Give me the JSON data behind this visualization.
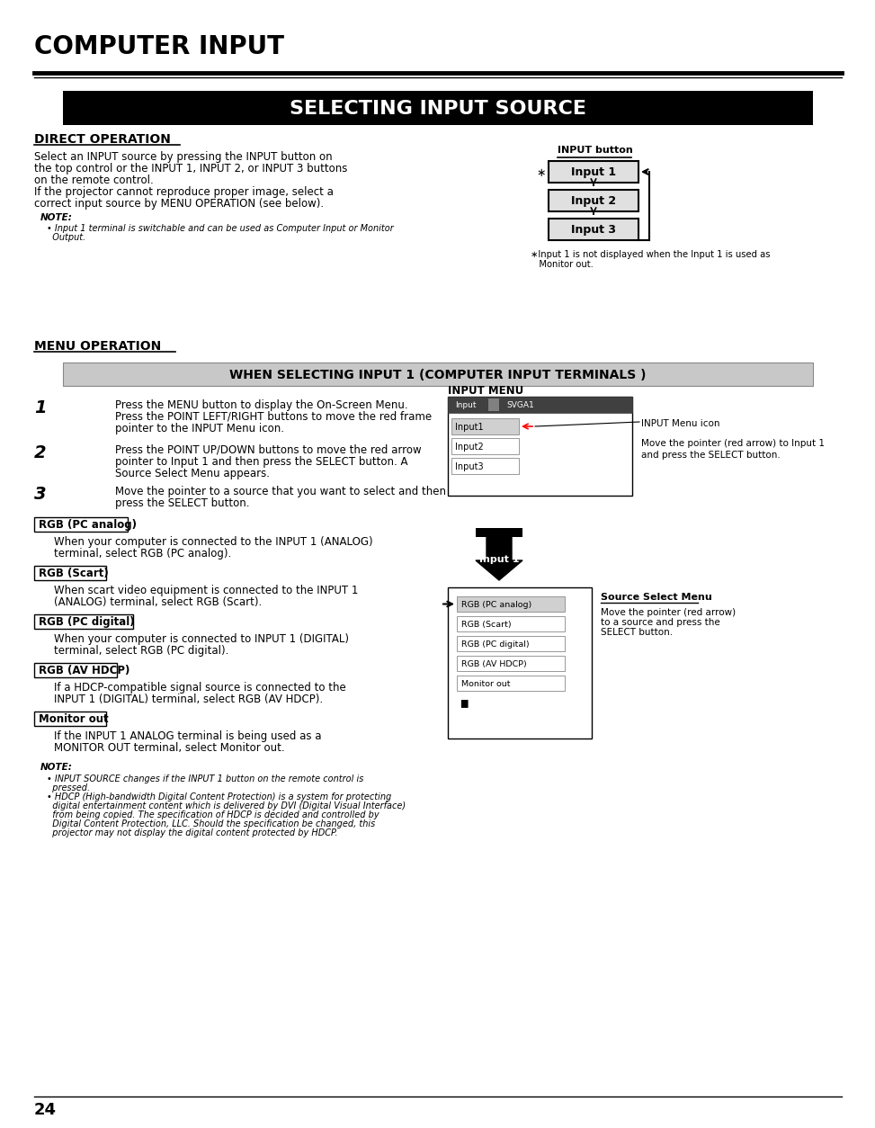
{
  "page_bg": "#ffffff",
  "title_main": "COMPUTER INPUT",
  "section_title": "SELECTING INPUT SOURCE",
  "section_title_bg": "#000000",
  "section_title_color": "#ffffff",
  "subsection1": "DIRECT OPERATION",
  "direct_op_text": "Select an INPUT source by pressing the INPUT button on\nthe top control or the INPUT 1, INPUT 2, or INPUT 3 buttons\non the remote control.\nIf the projector cannot reproduce proper image, select a\ncorrect input source by MENU OPERATION (see below).",
  "note_label": "NOTE:",
  "note_text1": "• Input 1 terminal is switchable and can be used as Computer Input or Monitor",
  "note_text2": "  Output.",
  "input_button_label": "INPUT button",
  "input_boxes": [
    "Input 1",
    "Input 2",
    "Input 3"
  ],
  "input_note1": "∗Input 1 is not displayed when the Input 1 is used as",
  "input_note2": "   Monitor out.",
  "subsection2": "MENU OPERATION",
  "when_title": "WHEN SELECTING INPUT 1 (COMPUTER INPUT TERMINALS )",
  "when_title_bg": "#c8c8c8",
  "step1_num": "1",
  "step1_lines": [
    "Press the MENU button to display the On-Screen Menu.",
    "Press the POINT LEFT/RIGHT buttons to move the red frame",
    "pointer to the INPUT Menu icon."
  ],
  "step2_num": "2",
  "step2_lines": [
    "Press the POINT UP/DOWN buttons to move the red arrow",
    "pointer to Input 1 and then press the SELECT button. A",
    "Source Select Menu appears."
  ],
  "step3_num": "3",
  "step3_lines": [
    "Move the pointer to a source that you want to select and then",
    "press the SELECT button."
  ],
  "input_menu_label": "INPUT MENU",
  "input_menu_icon_note": "INPUT Menu icon",
  "input_menu_pointer_note1": "Move the pointer (red arrow) to Input 1",
  "input_menu_pointer_note2": "and press the SELECT button.",
  "input1_arrow_label": "Input 1",
  "source_select_label": "Source Select Menu",
  "source_select_note1": "Move the pointer (red arrow)",
  "source_select_note2": "to a source and press the",
  "source_select_note3": "SELECT button.",
  "rgb_items": [
    {
      "label": "RGB (PC analog)",
      "lines": [
        "When your computer is connected to the INPUT 1 (ANALOG)",
        "terminal, select RGB (PC analog)."
      ]
    },
    {
      "label": "RGB (Scart)",
      "lines": [
        "When scart video equipment is connected to the INPUT 1",
        "(ANALOG) terminal, select RGB (Scart)."
      ]
    },
    {
      "label": "RGB (PC digital)",
      "lines": [
        "When your computer is connected to INPUT 1 (DIGITAL)",
        "terminal, select RGB (PC digital)."
      ]
    },
    {
      "label": "RGB (AV HDCP)",
      "lines": [
        "If a HDCP-compatible signal source is connected to the",
        "INPUT 1 (DIGITAL) terminal, select RGB (AV HDCP)."
      ]
    },
    {
      "label": "Monitor out",
      "lines": [
        "If the INPUT 1 ANALOG terminal is being used as a",
        "MONITOR OUT terminal, select Monitor out."
      ]
    }
  ],
  "bottom_note_label": "NOTE:",
  "bottom_note_lines": [
    "• INPUT SOURCE changes if the INPUT 1 button on the remote control is",
    "  pressed.",
    "• HDCP (High-bandwidth Digital Content Protection) is a system for protecting",
    "  digital entertainment content which is delivered by DVI (Digital Visual Interface)",
    "  from being copied. The specification of HDCP is decided and controlled by",
    "  Digital Content Protection, LLC. Should the specification be changed, this",
    "  projector may not display the digital content protected by HDCP."
  ],
  "page_number": "24"
}
